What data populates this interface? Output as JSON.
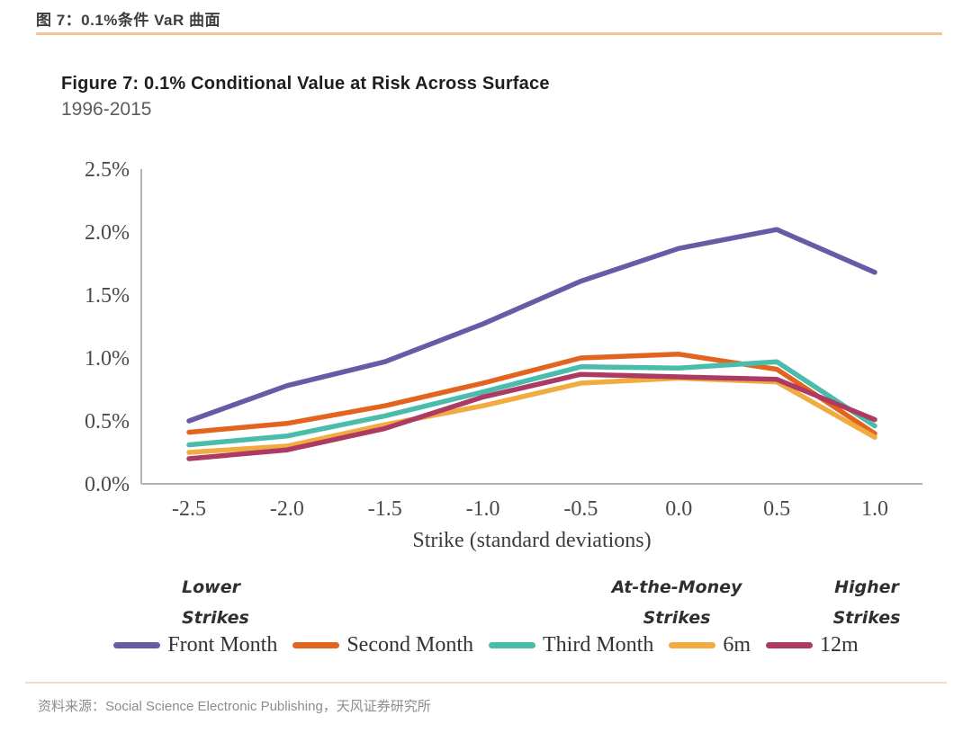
{
  "page": {
    "header_cn": "图 7：0.1%条件 VaR 曲面",
    "source": "资料来源：Social Science Electronic Publishing，天风证券研究所",
    "accent_color": "#f2c298"
  },
  "figure": {
    "title": "Figure 7: 0.1% Conditional Value at Risk Across Surface",
    "subtitle": "1996-2015"
  },
  "chart_data": {
    "type": "line",
    "title": "Figure 7: 0.1% Conditional Value at Risk Across Surface",
    "subtitle": "1996-2015",
    "xlabel": "Strike (standard deviations)",
    "ylabel": "",
    "x": [
      -2.5,
      -2.0,
      -1.5,
      -1.0,
      -0.5,
      0.0,
      0.5,
      1.0
    ],
    "x_tick_labels": [
      "-2.5",
      "-2.0",
      "-1.5",
      "-1.0",
      "-0.5",
      "0.0",
      "0.5",
      "1.0"
    ],
    "y_tick_labels": [
      "0.0%",
      "0.5%",
      "1.0%",
      "1.5%",
      "2.0%",
      "2.5%"
    ],
    "ylim": [
      0.0,
      2.5
    ],
    "grid": false,
    "legend_position": "bottom",
    "axis_color": "#b3b3b3",
    "tick_text_color": "#4a4a4a",
    "series": [
      {
        "name": "Front Month",
        "color": "#6a5aa5",
        "values": [
          0.5,
          0.78,
          0.97,
          1.27,
          1.61,
          1.87,
          2.02,
          1.68
        ]
      },
      {
        "name": "Second Month",
        "color": "#e2641f",
        "values": [
          0.41,
          0.48,
          0.62,
          0.8,
          1.0,
          1.03,
          0.91,
          0.4
        ]
      },
      {
        "name": "Third Month",
        "color": "#49bcab",
        "values": [
          0.31,
          0.38,
          0.54,
          0.73,
          0.93,
          0.92,
          0.97,
          0.46
        ]
      },
      {
        "name": "6m",
        "color": "#f0ac40",
        "values": [
          0.25,
          0.3,
          0.47,
          0.62,
          0.8,
          0.84,
          0.81,
          0.37
        ]
      },
      {
        "name": "12m",
        "color": "#ac3a62",
        "values": [
          0.2,
          0.27,
          0.44,
          0.69,
          0.87,
          0.85,
          0.83,
          0.51
        ]
      }
    ],
    "annotations": [
      {
        "line1": "Lower",
        "line2": "Strikes"
      },
      {
        "line1": "At-the-Money",
        "line2": "Strikes"
      },
      {
        "line1": "Higher",
        "line2": "Strikes"
      }
    ]
  }
}
